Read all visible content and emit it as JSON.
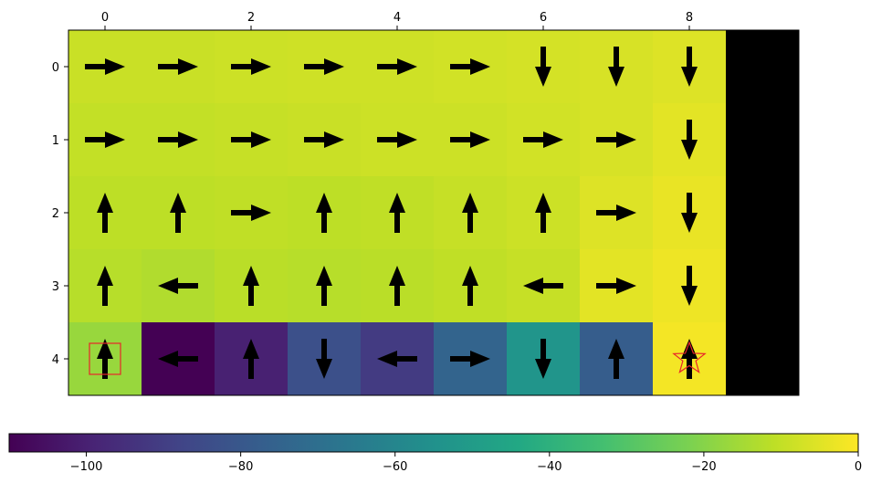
{
  "chart_data": [
    {
      "type": "heatmap",
      "title": "",
      "xlabel": "",
      "ylabel": "",
      "x_tick_labels": [
        "0",
        "2",
        "4",
        "6",
        "8"
      ],
      "x_tick_values": [
        0,
        2,
        4,
        6,
        8
      ],
      "y_tick_labels": [
        "0",
        "1",
        "2",
        "3",
        "4"
      ],
      "y_tick_values": [
        0,
        1,
        2,
        3,
        4
      ],
      "x_axis_position": "top",
      "xlim": [
        -0.5,
        9.5
      ],
      "ylim": [
        4.5,
        -0.5
      ],
      "grid": false,
      "colormap": "viridis",
      "masked_color": "#000000",
      "rows": 5,
      "cols": 10,
      "values": [
        [
          -9,
          -9,
          -8.5,
          -8,
          -8,
          -7.5,
          -7,
          -6.5,
          -5.5,
          null
        ],
        [
          -10,
          -10,
          -9.5,
          -9,
          -8.5,
          -8.5,
          -7.5,
          -6.5,
          -4.5,
          null
        ],
        [
          -11,
          -11,
          -10.5,
          -11,
          -10.5,
          -9.5,
          -8.5,
          -5.5,
          -3.5,
          null
        ],
        [
          -12,
          -13,
          -11.5,
          -12,
          -11.5,
          -10.5,
          -9.5,
          -4.5,
          -2.5,
          null
        ],
        [
          -17,
          -110,
          -100,
          -83,
          -91,
          -75,
          -53,
          -78,
          -1.5,
          null
        ]
      ],
      "arrows": [
        [
          "right",
          "right",
          "right",
          "right",
          "right",
          "right",
          "down",
          "down",
          "down",
          null
        ],
        [
          "right",
          "right",
          "right",
          "right",
          "right",
          "right",
          "right",
          "right",
          "down",
          null
        ],
        [
          "up",
          "up",
          "right",
          "up",
          "up",
          "up",
          "up",
          "right",
          "down",
          null
        ],
        [
          "up",
          "left",
          "up",
          "up",
          "up",
          "up",
          "left",
          "right",
          "down",
          null
        ],
        [
          "up",
          "left",
          "up",
          "down",
          "left",
          "right",
          "down",
          "up",
          "up",
          null
        ]
      ],
      "start_marker": {
        "shape": "square",
        "color": "#e8242a",
        "row": 4,
        "col": 0
      },
      "goal_marker": {
        "shape": "star",
        "color": "#e8242a",
        "row": 4,
        "col": 8
      }
    },
    {
      "type": "colorbar",
      "orientation": "horizontal",
      "colormap": "viridis",
      "range": [
        -110,
        0
      ],
      "tick_values": [
        -100,
        -80,
        -60,
        -40,
        -20,
        0
      ],
      "tick_labels": [
        "−100",
        "−80",
        "−60",
        "−40",
        "−20",
        "0"
      ]
    }
  ]
}
